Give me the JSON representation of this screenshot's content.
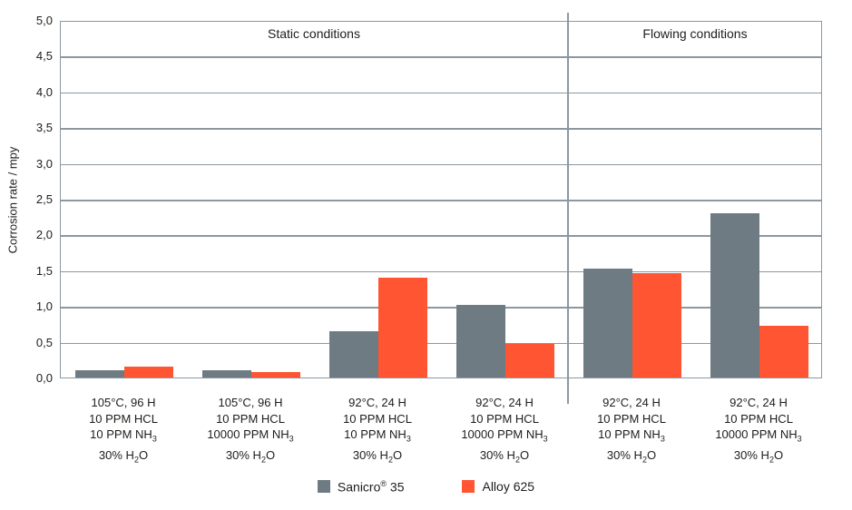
{
  "chart_data": {
    "type": "bar",
    "title": "",
    "xlabel": "",
    "ylabel": "Corrosion rate / mpy",
    "ylim": [
      0,
      5
    ],
    "ytick_step": 0.5,
    "ytick_labels": [
      "0,0",
      "0,5",
      "1,0",
      "1,5",
      "2,0",
      "2,5",
      "3,0",
      "3,5",
      "4,0",
      "4,5",
      "5,0"
    ],
    "grid": "horizontal",
    "legend_position": "bottom",
    "categories": [
      [
        "105°C, 96 H",
        "10 PPM HCL",
        "10 PPM NH₃",
        "30% H₂O"
      ],
      [
        "105°C, 96 H",
        "10 PPM HCL",
        "10000 PPM NH₃",
        "30% H₂O"
      ],
      [
        "92°C, 24 H",
        "10 PPM HCL",
        "10 PPM NH₃",
        "30% H₂O"
      ],
      [
        "92°C, 24 H",
        "10 PPM HCL",
        "10000 PPM NH₃",
        "30% H₂O"
      ],
      [
        "92°C, 24 H",
        "10 PPM HCL",
        "10 PPM NH₃",
        "30% H₂O"
      ],
      [
        "92°C, 24 H",
        "10 PPM HCL",
        "10000 PPM NH₃",
        "30% H₂O"
      ]
    ],
    "series": [
      {
        "name": "Sanicro® 35",
        "color": "#6e7b83",
        "values": [
          0.1,
          0.1,
          0.65,
          1.02,
          1.52,
          2.3
        ]
      },
      {
        "name": "Alloy 625",
        "color": "#ff5532",
        "values": [
          0.15,
          0.07,
          1.4,
          0.47,
          1.46,
          0.72
        ]
      }
    ],
    "sections": [
      {
        "label": "Static conditions",
        "groups": 4
      },
      {
        "label": "Flowing conditions",
        "groups": 2
      }
    ]
  },
  "styles": {
    "grid_color": "#8b98a1",
    "text_color": "#1d1d1b",
    "background": "#ffffff"
  }
}
